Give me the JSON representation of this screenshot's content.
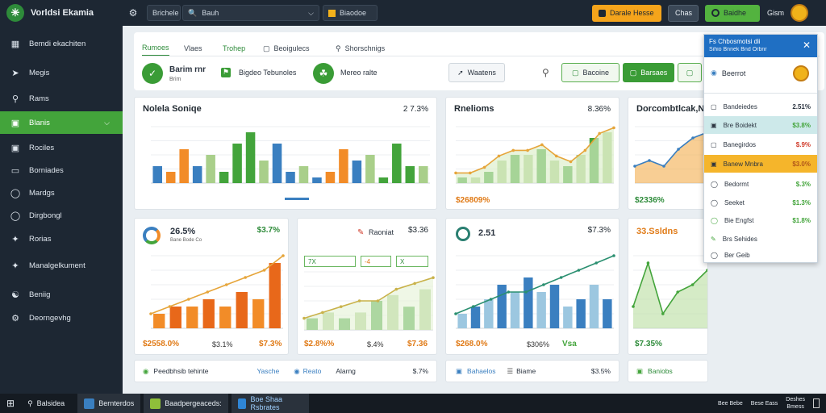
{
  "app": {
    "title": "Vorldsi Ekamia",
    "logo_icon": "grid-logo-icon"
  },
  "titlebar": {
    "search_prefix": "Brichele",
    "search_value": "Bauh",
    "button1": "Biaodoe",
    "button2": "Darale Hesse",
    "button3": "Chas",
    "button4": "Baidhe",
    "user": "Gism"
  },
  "sidebar": {
    "items": [
      {
        "label": "Bemdi ekachiten",
        "icon": "grid-icon"
      },
      {
        "label": "Megis",
        "icon": "compass-icon"
      },
      {
        "label": "Rams",
        "icon": "search-icon"
      },
      {
        "label": "Blanis",
        "icon": "chart-icon",
        "active": true
      },
      {
        "label": "Rociles",
        "icon": "image-icon"
      },
      {
        "label": "Borniades",
        "icon": "folder-icon"
      },
      {
        "label": "Mardgs",
        "icon": "message-icon"
      },
      {
        "label": "Dirgbongl",
        "icon": "chat-icon"
      },
      {
        "label": "Rorias",
        "icon": "tools-icon"
      },
      {
        "label": "Manalgelkument",
        "icon": "settings-icon"
      },
      {
        "label": "Beniig",
        "icon": "users-icon"
      },
      {
        "label": "Deorngevhg",
        "icon": "gear-icon"
      }
    ]
  },
  "tabs": [
    {
      "label": "Rumoes",
      "active": true
    },
    {
      "label": "Vlaes"
    },
    {
      "label": "Trohep"
    },
    {
      "label": "Beoigulecs"
    },
    {
      "label": "Shorschnigs"
    }
  ],
  "summary": {
    "item1_value": "Barim rnr",
    "item1_sub": "Brim",
    "item2_label": "Bigdeo Tebunoles",
    "item3_label": "Mereo ralte",
    "btn_tool": "Waatens",
    "btn_a": "Bacoine",
    "btn_b": "Barsaes"
  },
  "colors": {
    "green": "#43a43b",
    "orange": "#f28c28",
    "blue": "#3a7fc0",
    "light_green": "#a9cf8a",
    "light_blue": "#9cc7e0",
    "accent_blue": "#1f6fc3"
  },
  "cards_top": [
    {
      "title": "Nolela Soniqe",
      "value": "2 7.3%"
    },
    {
      "title": "Rnelioms",
      "value": "8.36%"
    },
    {
      "title": "Dorcombtlcak,Nt3%",
      "value": ""
    }
  ],
  "cards_top_foot": [
    "",
    "$26809%",
    "$2336%"
  ],
  "cards_mid": [
    {
      "title": "26.5%",
      "sub": "Bane Bode Co",
      "value": "$3.7%",
      "foot_l": "$2558.0%",
      "foot_m": "$3.1%",
      "foot_r": "$7.3%"
    },
    {
      "title": "Raoniat",
      "value": "$3.36",
      "foot_l": "$2.8%%",
      "foot_m": "$.4%",
      "foot_r": "$7.36"
    },
    {
      "title": "2.51",
      "value": "$7.3%",
      "foot_l": "$268.0%",
      "foot_m": "$306%",
      "foot_r": "Vsa"
    },
    {
      "title": "33.Ssldns",
      "value": "",
      "foot_l": "$7.35%",
      "foot_m": "",
      "foot_r": ""
    }
  ],
  "chips": [
    "7X",
    "-4",
    "X"
  ],
  "bottom": [
    {
      "label": "Peedbhsib tehinte",
      "mid": "Yasche",
      "right": ""
    },
    {
      "label": "Reato",
      "mid": "Alarng",
      "right": "$.7%"
    },
    {
      "label": "Bahaelos",
      "mid": "Biame",
      "right": "$3.5%"
    },
    {
      "label": "Baniobs",
      "mid": "",
      "right": ""
    }
  ],
  "panel": {
    "head1": "Fs Chbosmotsi dii",
    "head2": "Sihio Bnnek Bnd Orbnr",
    "title": "Beerrot",
    "rows": [
      {
        "label": "Bandeiedes",
        "value": "2.51%"
      },
      {
        "label": "Bre Boidekt",
        "value": "$3.8%"
      },
      {
        "label": "Banegirdos",
        "value": "$.9%"
      },
      {
        "label": "Banew Mnbra",
        "value": "$3.0%"
      },
      {
        "label": "Bedormt",
        "value": "$.3%"
      },
      {
        "label": "Seeket",
        "value": "$1.3%"
      },
      {
        "label": "Bie Engfst",
        "value": "$1.8%"
      },
      {
        "label": "Brs Sehides",
        "value": ""
      },
      {
        "label": "Ber Geib",
        "value": ""
      }
    ]
  },
  "taskbar": {
    "search": "Balsidea",
    "app1": "Bernterdos",
    "app2": "Baadpergeaceds:",
    "app3": "Boe Shaa Rsbrates",
    "tray1": "Bee Bebe",
    "tray2": "Bese Eass",
    "time": "Deshes",
    "date": "Bmess"
  },
  "chart_data": [
    {
      "type": "bar",
      "title": "Nolela Soniqe",
      "series": [
        {
          "values": [
            3,
            2,
            6,
            3,
            5,
            2,
            7,
            9,
            4,
            7,
            2,
            3,
            1,
            2,
            6,
            4,
            5,
            1,
            7,
            3,
            3
          ]
        }
      ]
    },
    {
      "type": "line",
      "title": "Rnelioms",
      "series": [
        {
          "values": [
            1,
            1,
            2,
            4,
            5,
            5,
            6,
            4,
            3,
            5,
            8,
            9
          ]
        }
      ]
    },
    {
      "type": "area",
      "title": "Dorcombtlcak,Nt3%",
      "series": [
        {
          "values": [
            3,
            4,
            3,
            6,
            8,
            9
          ]
        }
      ]
    },
    {
      "type": "bar",
      "series": [
        {
          "values": [
            2,
            3,
            3,
            4,
            3,
            5,
            4,
            9
          ]
        },
        {
          "values": [
            2,
            3,
            4,
            5,
            6,
            7,
            8,
            10
          ]
        }
      ]
    },
    {
      "type": "bar",
      "series": [
        {
          "values": [
            2,
            3,
            2,
            3,
            5,
            6,
            4,
            7
          ]
        },
        {
          "values": [
            2,
            3,
            4,
            5,
            5,
            7,
            8,
            9
          ]
        }
      ]
    },
    {
      "type": "bar",
      "series": [
        {
          "values": [
            2,
            3,
            4,
            6,
            5,
            7,
            5,
            6,
            3,
            4,
            6,
            4
          ]
        },
        {
          "values": [
            2,
            3,
            4,
            5,
            5,
            6,
            7,
            8,
            9,
            10
          ]
        }
      ]
    },
    {
      "type": "area",
      "series": [
        {
          "values": [
            3,
            9,
            2,
            5,
            6,
            8
          ]
        }
      ]
    }
  ]
}
